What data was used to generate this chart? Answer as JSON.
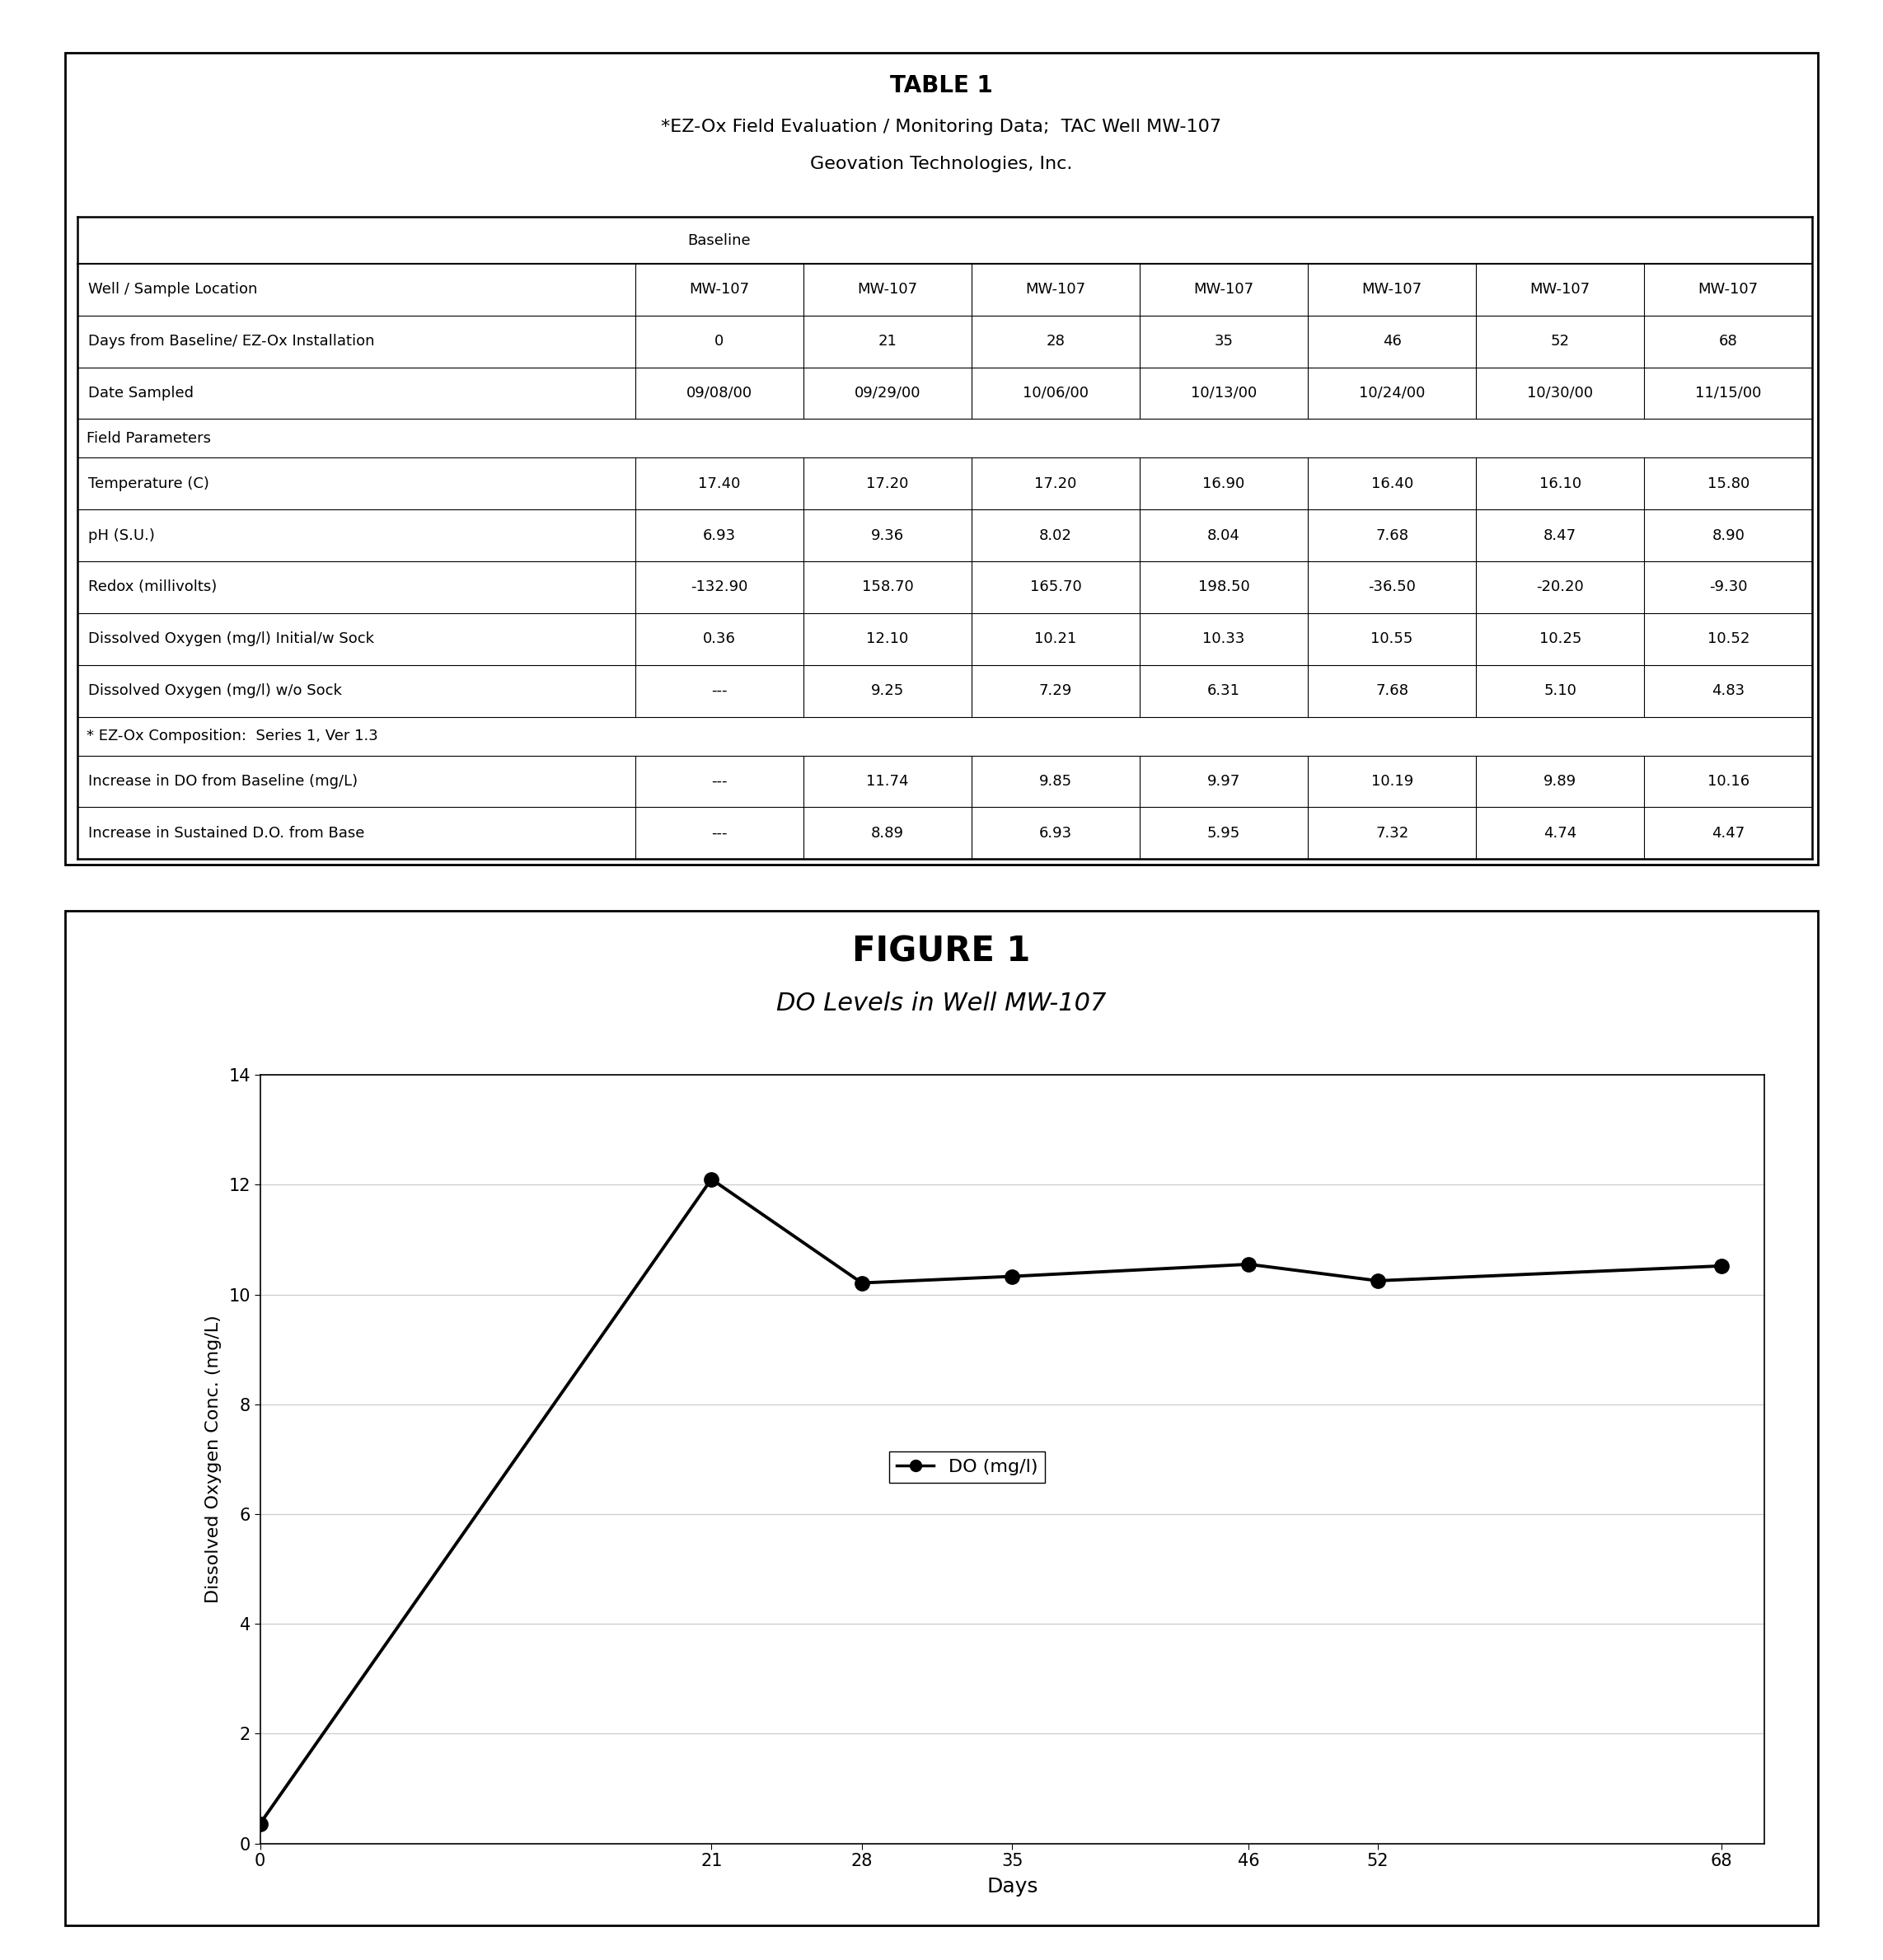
{
  "table_title": "TABLE 1",
  "table_subtitle1": "*EZ-Ox Field Evaluation / Monitoring Data;  TAC Well MW-107",
  "table_subtitle2": "Geovation Technologies, Inc.",
  "col_header_label": "Baseline",
  "row_labels": [
    "Well / Sample Location",
    "Days from Baseline/ EZ-Ox Installation",
    "Date Sampled",
    "Field Parameters",
    "Temperature (C)",
    "pH (S.U.)",
    "Redox (millivolts)",
    "Dissolved Oxygen (mg/l) Initial/w Sock",
    "Dissolved Oxygen (mg/l) w/o Sock",
    "* EZ-Ox Composition:  Series 1, Ver 1.3",
    "Increase in DO from Baseline (mg/L)",
    "Increase in Sustained D.O. from Base"
  ],
  "table_data": [
    [
      "MW-107",
      "MW-107",
      "MW-107",
      "MW-107",
      "MW-107",
      "MW-107",
      "MW-107"
    ],
    [
      "0",
      "21",
      "28",
      "35",
      "46",
      "52",
      "68"
    ],
    [
      "09/08/00",
      "09/29/00",
      "10/06/00",
      "10/13/00",
      "10/24/00",
      "10/30/00",
      "11/15/00"
    ],
    [
      "",
      "",
      "",
      "",
      "",
      "",
      ""
    ],
    [
      "17.40",
      "17.20",
      "17.20",
      "16.90",
      "16.40",
      "16.10",
      "15.80"
    ],
    [
      "6.93",
      "9.36",
      "8.02",
      "8.04",
      "7.68",
      "8.47",
      "8.90"
    ],
    [
      "-132.90",
      "158.70",
      "165.70",
      "198.50",
      "-36.50",
      "-20.20",
      "-9.30"
    ],
    [
      "0.36",
      "12.10",
      "10.21",
      "10.33",
      "10.55",
      "10.25",
      "10.52"
    ],
    [
      "---",
      "9.25",
      "7.29",
      "6.31",
      "7.68",
      "5.10",
      "4.83"
    ],
    [
      "",
      "",
      "",
      "",
      "",
      "",
      ""
    ],
    [
      "---",
      "11.74",
      "9.85",
      "9.97",
      "10.19",
      "9.89",
      "10.16"
    ],
    [
      "---",
      "8.89",
      "6.93",
      "5.95",
      "7.32",
      "4.74",
      "4.47"
    ]
  ],
  "section_header_indices": [
    3,
    9
  ],
  "figure_title": "FIGURE 1",
  "figure_subtitle": "DO Levels in Well MW-107",
  "x_data": [
    0,
    21,
    28,
    35,
    46,
    52,
    68
  ],
  "y_data": [
    0.36,
    12.1,
    10.21,
    10.33,
    10.55,
    10.25,
    10.52
  ],
  "x_label": "Days",
  "y_label": "Dissolved Oxygen Conc. (mg/L)",
  "y_lim": [
    0,
    14
  ],
  "x_lim": [
    0,
    70
  ],
  "y_ticks": [
    0,
    2,
    4,
    6,
    8,
    10,
    12,
    14
  ],
  "x_ticks": [
    0,
    21,
    28,
    35,
    46,
    52,
    68
  ],
  "legend_label": "DO (mg/l)",
  "line_color": "#000000",
  "marker_color": "#000000",
  "bg_color": "#ffffff",
  "table_font_size": 13,
  "table_title_font_size": 20,
  "table_subtitle_font_size": 16
}
